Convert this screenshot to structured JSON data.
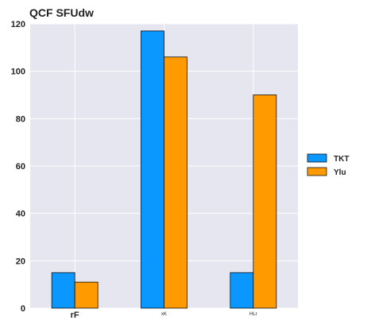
{
  "chart_data": {
    "type": "bar",
    "title": "QCF SFUdw",
    "xlabel": "",
    "ylabel": "",
    "categories": [
      "rF",
      "xK",
      "HLr"
    ],
    "category_label_styles": [
      "large",
      "tiny",
      "tiny"
    ],
    "series": [
      {
        "name": "TKT",
        "color": "#0a97ff",
        "values": [
          15,
          117,
          15
        ]
      },
      {
        "name": "Ylu",
        "color": "#ff9a00",
        "values": [
          11,
          106,
          90
        ]
      }
    ],
    "ylim": [
      0,
      120
    ],
    "yticks": [
      0,
      20,
      40,
      60,
      80,
      100,
      120
    ],
    "grid": true,
    "legend_position": "right",
    "plot_background": "#e5e6f0",
    "grid_color": "#ffffff",
    "bar_edge_color": "#111111"
  }
}
